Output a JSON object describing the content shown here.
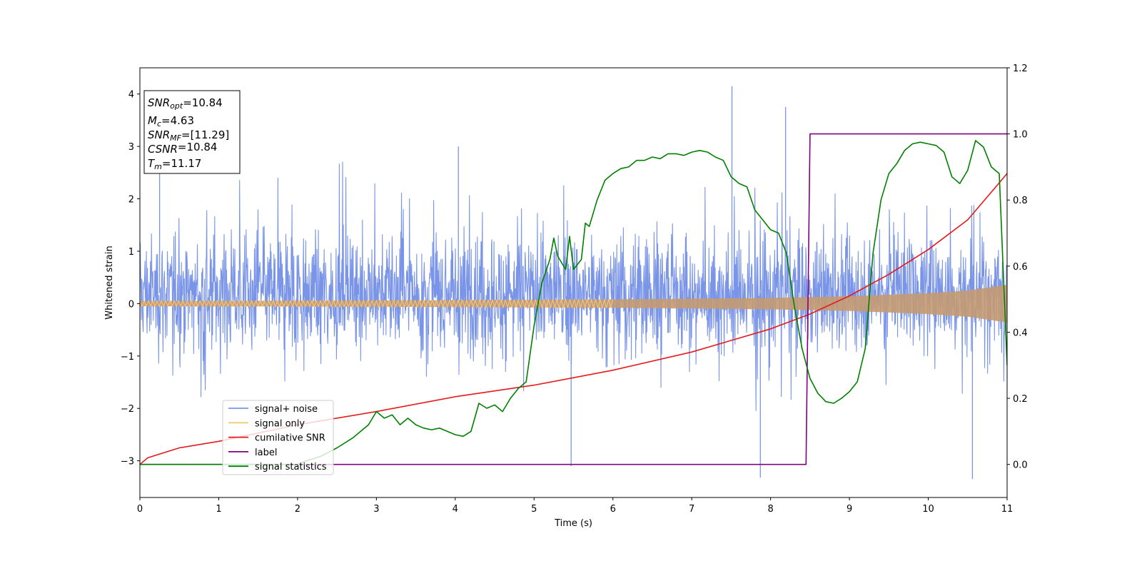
{
  "chart_data": {
    "type": "line",
    "xlabel": "Time (s)",
    "ylabel": "Whitened strain",
    "xlim": [
      0,
      11
    ],
    "ylim_left": [
      -3.7,
      4.5
    ],
    "ylim_right": [
      -0.1,
      1.2
    ],
    "x_ticks": [
      "0",
      "1",
      "2",
      "3",
      "4",
      "5",
      "6",
      "7",
      "8",
      "9",
      "10",
      "11"
    ],
    "y_left_ticks": [
      "−3",
      "−2",
      "−1",
      "0",
      "1",
      "2",
      "3",
      "4"
    ],
    "y_right_ticks": [
      "0.0",
      "0.2",
      "0.4",
      "0.6",
      "0.8",
      "1.0",
      "1.2"
    ],
    "grid": false,
    "legend_position": "lower-left",
    "annotation": {
      "lines": [
        {
          "main": "SNR",
          "sub": "opt",
          "value": "=10.84"
        },
        {
          "main": "M",
          "sub": "c",
          "value": "=4.63"
        },
        {
          "main": "SNR",
          "sub": "MF",
          "value": "=[11.29]"
        },
        {
          "main": "CSNR",
          "sub": "",
          "value": "=10.84"
        },
        {
          "main": "T",
          "sub": "m",
          "value": "=11.17"
        }
      ]
    },
    "series": [
      {
        "name": "signal+ noise",
        "axis": "left",
        "color": "#7a95e8",
        "style": "dense noise trace",
        "envelope_typical": [
          -1.4,
          1.8
        ],
        "spikes": [
          [
            0.25,
            2.6
          ],
          [
            4.04,
            3.0
          ],
          [
            7.51,
            4.15
          ],
          [
            8.19,
            3.75
          ],
          [
            5.47,
            -3.1
          ],
          [
            7.87,
            -3.32
          ],
          [
            10.56,
            -3.35
          ]
        ]
      },
      {
        "name": "signal only",
        "axis": "left",
        "color": "#f5c87a",
        "style": "chirp with growing amplitude",
        "x": [
          0,
          2,
          4,
          6,
          8,
          9,
          10,
          10.5,
          11
        ],
        "amplitude": [
          0.05,
          0.055,
          0.065,
          0.08,
          0.11,
          0.14,
          0.2,
          0.25,
          0.36
        ]
      },
      {
        "name": "cumilative SNR",
        "axis": "right",
        "color": "#e41a1c",
        "x": [
          0,
          0.1,
          0.5,
          1,
          2,
          3,
          4,
          5,
          6,
          7,
          8,
          8.5,
          9,
          9.5,
          10,
          10.5,
          11
        ],
        "y": [
          0.0,
          0.02,
          0.05,
          0.07,
          0.12,
          0.16,
          0.205,
          0.24,
          0.285,
          0.34,
          0.41,
          0.455,
          0.51,
          0.575,
          0.65,
          0.74,
          0.88
        ]
      },
      {
        "name": "label",
        "axis": "right",
        "color": "#800080",
        "x": [
          0,
          8.45,
          8.5,
          11
        ],
        "y": [
          0.0,
          0.0,
          1.0,
          1.0
        ]
      },
      {
        "name": "signal statistics",
        "axis": "right",
        "color": "#008000",
        "x": [
          0,
          1,
          2,
          2.1,
          2.3,
          2.5,
          2.7,
          2.9,
          3.0,
          3.1,
          3.2,
          3.3,
          3.4,
          3.5,
          3.6,
          3.7,
          3.8,
          4.0,
          4.1,
          4.2,
          4.3,
          4.4,
          4.5,
          4.6,
          4.7,
          4.8,
          4.9,
          5.0,
          5.1,
          5.2,
          5.25,
          5.3,
          5.4,
          5.45,
          5.5,
          5.6,
          5.65,
          5.7,
          5.8,
          5.9,
          6.0,
          6.1,
          6.2,
          6.3,
          6.4,
          6.5,
          6.6,
          6.7,
          6.8,
          6.9,
          7.0,
          7.1,
          7.2,
          7.3,
          7.4,
          7.5,
          7.6,
          7.7,
          7.8,
          7.9,
          8.0,
          8.1,
          8.2,
          8.3,
          8.4,
          8.5,
          8.6,
          8.7,
          8.8,
          8.9,
          9.0,
          9.1,
          9.2,
          9.3,
          9.4,
          9.5,
          9.6,
          9.7,
          9.8,
          9.9,
          10.0,
          10.1,
          10.2,
          10.3,
          10.4,
          10.5,
          10.6,
          10.7,
          10.8,
          10.9,
          11.0
        ],
        "y": [
          0.0,
          0.0,
          0.0,
          0.01,
          0.025,
          0.05,
          0.08,
          0.12,
          0.16,
          0.14,
          0.15,
          0.12,
          0.14,
          0.12,
          0.11,
          0.105,
          0.11,
          0.09,
          0.085,
          0.1,
          0.185,
          0.17,
          0.18,
          0.16,
          0.2,
          0.23,
          0.25,
          0.42,
          0.55,
          0.62,
          0.685,
          0.63,
          0.59,
          0.69,
          0.59,
          0.62,
          0.73,
          0.72,
          0.8,
          0.86,
          0.88,
          0.895,
          0.9,
          0.92,
          0.92,
          0.93,
          0.925,
          0.94,
          0.94,
          0.935,
          0.945,
          0.95,
          0.945,
          0.93,
          0.92,
          0.87,
          0.85,
          0.84,
          0.77,
          0.74,
          0.71,
          0.7,
          0.64,
          0.48,
          0.35,
          0.26,
          0.215,
          0.19,
          0.185,
          0.2,
          0.22,
          0.25,
          0.35,
          0.64,
          0.8,
          0.88,
          0.91,
          0.95,
          0.97,
          0.975,
          0.97,
          0.965,
          0.945,
          0.87,
          0.85,
          0.89,
          0.98,
          0.96,
          0.9,
          0.88,
          0.3
        ]
      }
    ]
  }
}
